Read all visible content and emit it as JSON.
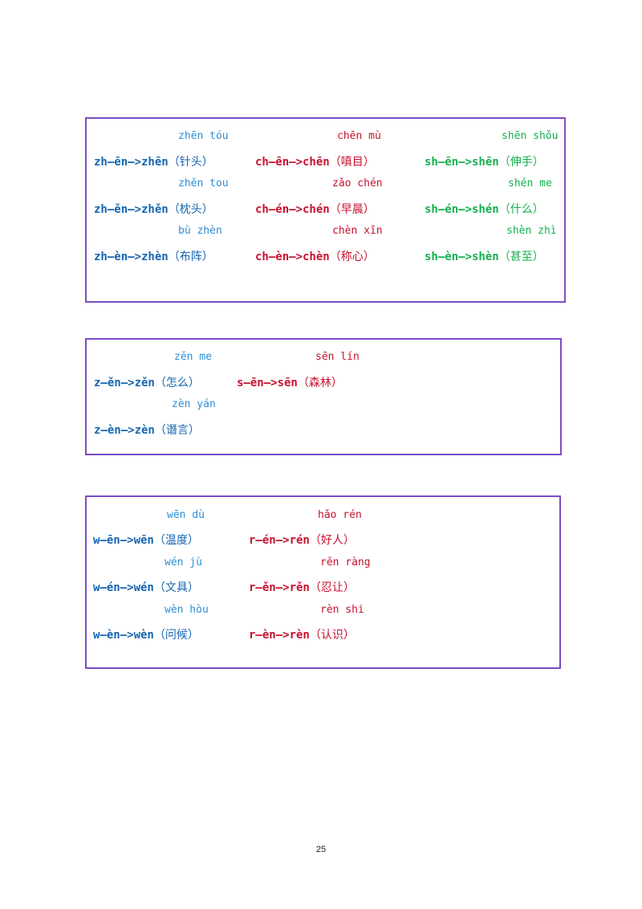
{
  "colors": {
    "box_border": "#7b4bc4",
    "blue": "#1a7fc8",
    "red": "#c8102e",
    "green": "#12b04d"
  },
  "box1": {
    "zh": [
      {
        "pinyin": "zhēn tóu",
        "rule": "zh—ēn—>zhēn",
        "word": "（针头）"
      },
      {
        "pinyin": "zhěn tou",
        "rule": "zh—ěn—>zhěn",
        "word": "（枕头）"
      },
      {
        "pinyin": "bù zhèn",
        "rule": "zh—èn—>zhèn",
        "word": "（布阵）"
      }
    ],
    "ch": [
      {
        "pinyin": "chēn mù",
        "rule": "ch—ēn—>chēn",
        "word": "（嗔目）"
      },
      {
        "pinyin": "zǎo chén",
        "rule": "ch—én—>chén",
        "word": "（早晨）"
      },
      {
        "pinyin": "chèn xīn",
        "rule": "ch—èn—>chèn",
        "word": "（称心）"
      }
    ],
    "sh": [
      {
        "pinyin": "shēn shǒu",
        "rule": "sh—ēn—>shēn",
        "word": "（伸手）"
      },
      {
        "pinyin": "shén me",
        "rule": "sh—én—>shén",
        "word": "（什么）"
      },
      {
        "pinyin": "shèn zhì",
        "rule": "sh—èn—>shèn",
        "word": "（甚至）"
      }
    ]
  },
  "box2": {
    "z": [
      {
        "pinyin": "zěn me",
        "rule": "z—ěn—>zěn",
        "word": "（怎么）"
      },
      {
        "pinyin": "zèn yán",
        "rule": "z—èn—>zèn",
        "word": "（谮言）"
      }
    ],
    "s": [
      {
        "pinyin": "sēn lín",
        "rule": "s—ēn—>sēn",
        "word": "（森林）"
      }
    ]
  },
  "box3": {
    "w": [
      {
        "pinyin": "wēn dù",
        "rule": "w—ēn—>wēn",
        "word": "（温度）"
      },
      {
        "pinyin": "wén jù",
        "rule": "w—én—>wén",
        "word": "（文具）"
      },
      {
        "pinyin": "wèn hòu",
        "rule": "w—èn—>wèn",
        "word": "（问候）"
      }
    ],
    "r": [
      {
        "pinyin": "hǎo rén",
        "rule": "r—én—>rén",
        "word": "（好人）"
      },
      {
        "pinyin": "rěn ràng",
        "rule": "r—ěn—>rěn",
        "word": "（忍让）"
      },
      {
        "pinyin": "rèn shi",
        "rule": "r—èn—>rèn",
        "word": "（认识）"
      }
    ]
  },
  "page_number": "25"
}
